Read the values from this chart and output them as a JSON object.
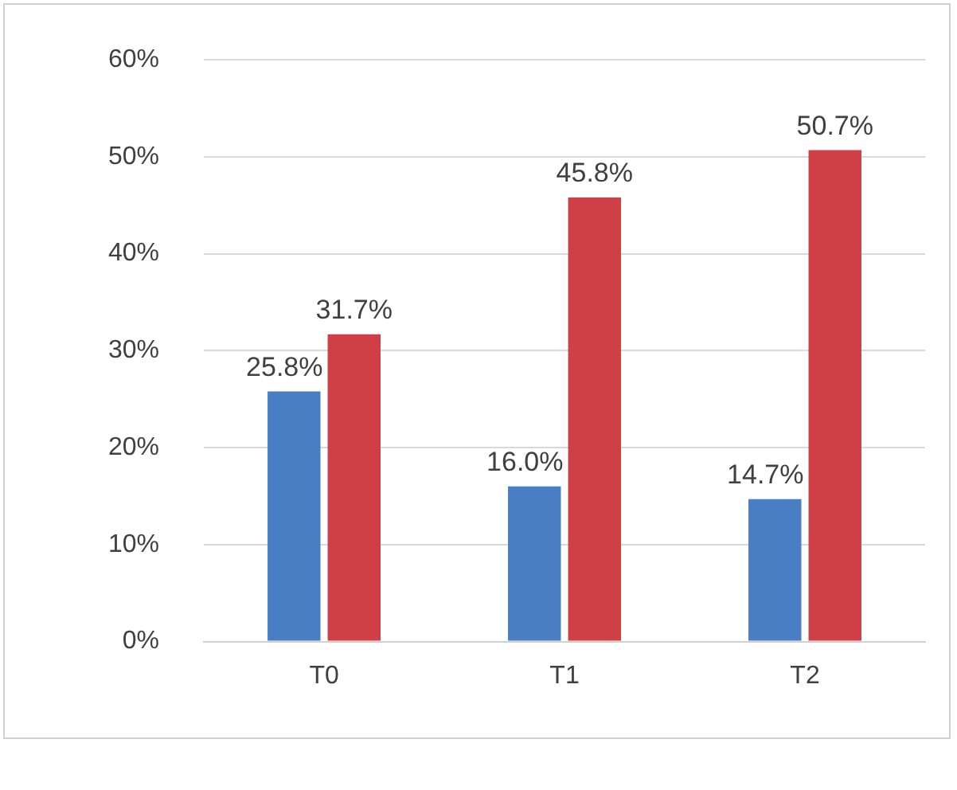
{
  "chart_data": {
    "type": "bar",
    "categories": [
      "T0",
      "T1",
      "T2"
    ],
    "series": [
      {
        "color": "#4a7ec4",
        "values": [
          25.8,
          16.0,
          14.7
        ],
        "value_labels": [
          "25.8%",
          "16.0%",
          "14.7%"
        ]
      },
      {
        "color": "#d13f46",
        "values": [
          31.7,
          45.8,
          50.7
        ],
        "value_labels": [
          "31.7%",
          "45.8%",
          "50.7%"
        ]
      }
    ],
    "ylim": [
      0,
      60
    ],
    "yticks": [
      {
        "value": 0,
        "label": "0%"
      },
      {
        "value": 10,
        "label": "10%"
      },
      {
        "value": 20,
        "label": "20%"
      },
      {
        "value": 30,
        "label": "30%"
      },
      {
        "value": 40,
        "label": "40%"
      },
      {
        "value": 50,
        "label": "50%"
      },
      {
        "value": 60,
        "label": "60%"
      }
    ],
    "grid": "y",
    "legend": false
  }
}
